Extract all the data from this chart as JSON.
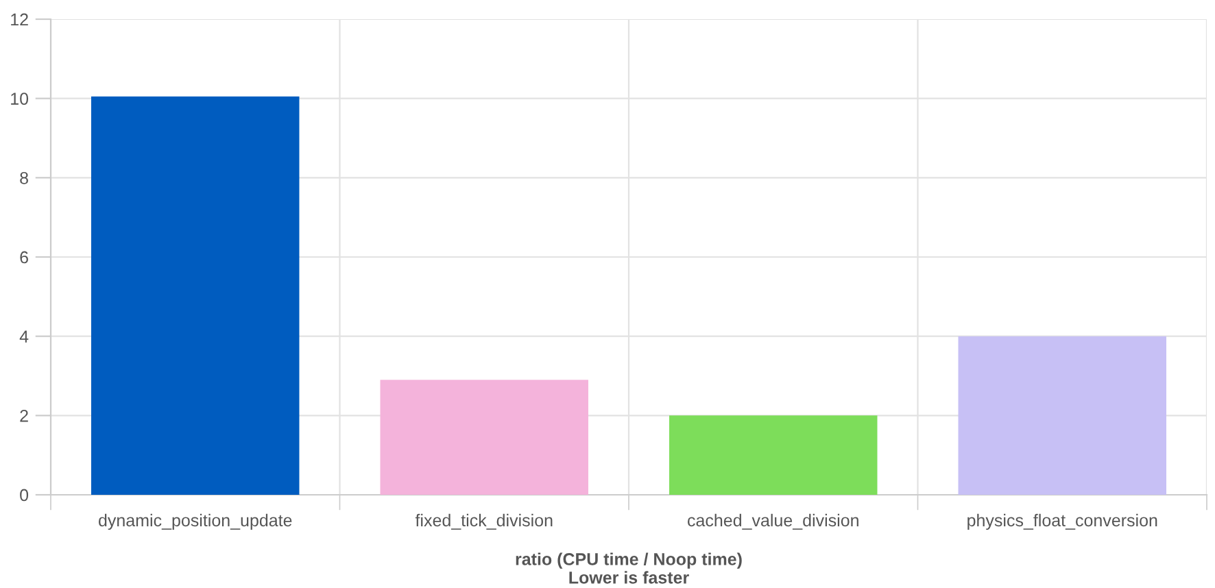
{
  "chart_data": {
    "type": "bar",
    "xlabel": "ratio (CPU time / Noop time)\nLower is faster",
    "categories": [
      "dynamic_position_update",
      "fixed_tick_division",
      "cached_value_division",
      "physics_float_conversion"
    ],
    "values": [
      10.05,
      2.9,
      2.0,
      4.0
    ],
    "colors": [
      "#005cbf",
      "#f4b3db",
      "#7ddd5a",
      "#c7c0f5"
    ],
    "ylim": [
      0,
      12
    ],
    "yticks": [
      0,
      2,
      4,
      6,
      8,
      10,
      12
    ],
    "grid": true,
    "legend": false
  }
}
